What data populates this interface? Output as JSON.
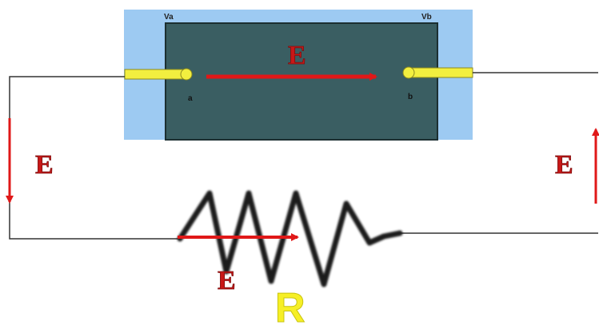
{
  "labels": {
    "potential_a": "Va",
    "potential_b": "Vb",
    "terminal_a": "a",
    "terminal_b": "b",
    "field_inside": "E",
    "field_left": "E",
    "field_right": "E",
    "field_resistor": "E",
    "resistor": "R"
  },
  "colors": {
    "battery_outer": "#9dcaf2",
    "battery_inner": "#3a5e62",
    "terminal_rod": "#f2ef3f",
    "terminal_dot": "#f2ef3f",
    "wire": "#333333",
    "arrow": "#e01818",
    "field_text": "#c81818",
    "resistor_coil": "#1a1a1a",
    "resistor_label": "#f6ef26"
  }
}
